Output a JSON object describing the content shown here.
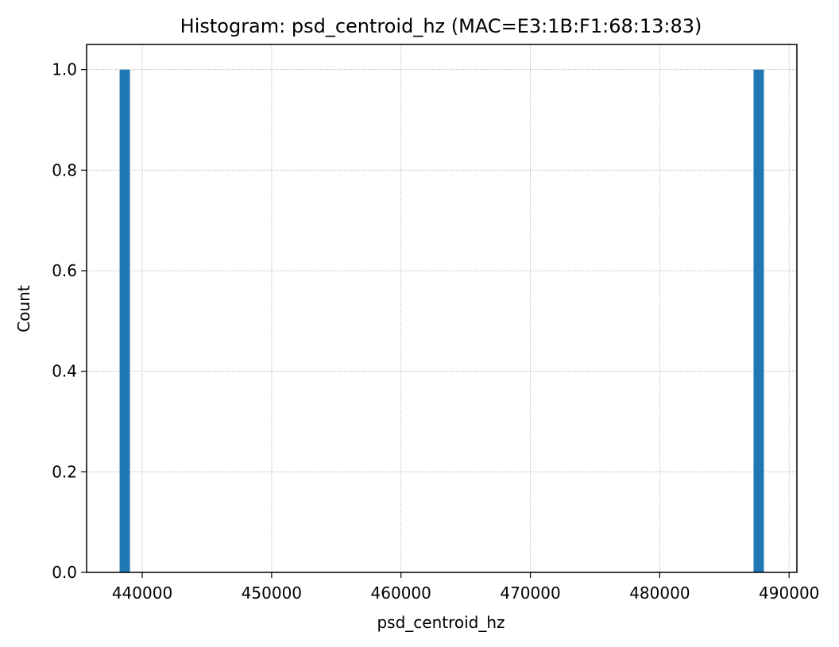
{
  "chart_data": {
    "type": "bar",
    "title": "Histogram: psd_centroid_hz (MAC=E3:1B:F1:68:13:83)",
    "xlabel": "psd_centroid_hz",
    "ylabel": "Count",
    "xlim": [
      435700,
      490600
    ],
    "ylim": [
      0,
      1.05
    ],
    "xticks": [
      440000,
      450000,
      460000,
      470000,
      480000,
      490000
    ],
    "xtick_labels": [
      "440000",
      "450000",
      "460000",
      "470000",
      "480000",
      "490000"
    ],
    "yticks": [
      0.0,
      0.2,
      0.4,
      0.6,
      0.8,
      1.0
    ],
    "ytick_labels": [
      "0.0",
      "0.2",
      "0.4",
      "0.6",
      "0.8",
      "1.0"
    ],
    "grid": true,
    "bins": [
      {
        "x0": 438250,
        "x1": 439050,
        "count": 1
      },
      {
        "x0": 487250,
        "x1": 488050,
        "count": 1
      }
    ],
    "bar_color": "#1f77b4",
    "grid_color": "#b0b0b0"
  }
}
